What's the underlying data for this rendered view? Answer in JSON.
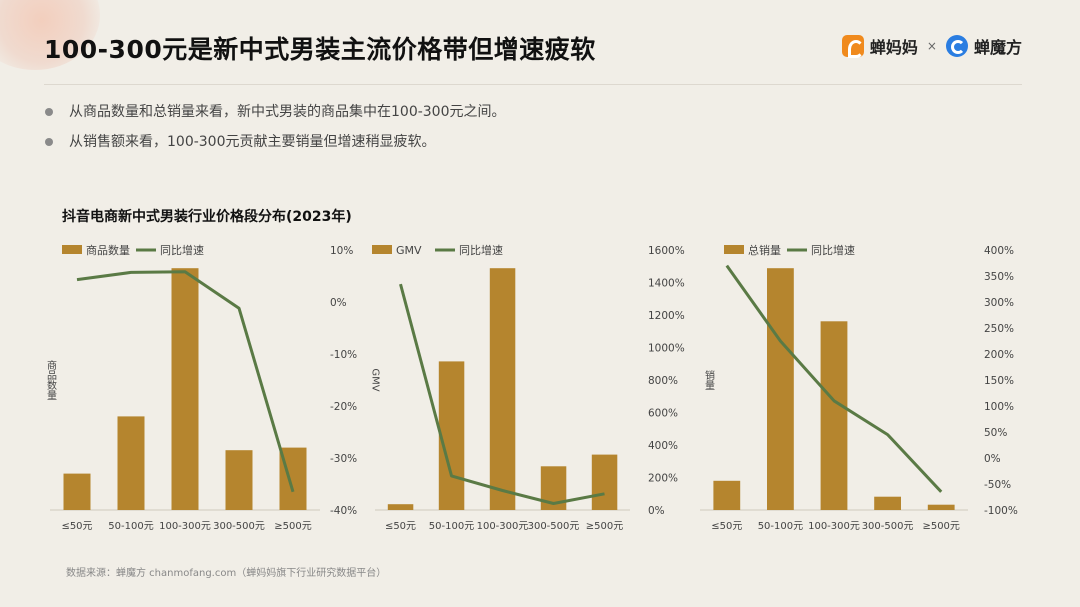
{
  "header": {
    "title": "100-300元是新中式男装主流价格带但增速疲软",
    "brand_left": "蝉妈妈",
    "brand_sep": "×",
    "brand_right": "蝉魔方"
  },
  "bullets": [
    "从商品数量和总销量来看，新中式男装的商品集中在100-300元之间。",
    "从销售额来看，100-300元贡献主要销量但增速稍显疲软。"
  ],
  "section_title": "抖音电商新中式男装行业价格段分布(2023年)",
  "footnote": "数据来源：蝉魔方 chanmofang.com（蝉妈妈旗下行业研究数据平台）",
  "colors": {
    "bar": "#b5852e",
    "line": "#5a7a45",
    "axis_text": "#444"
  },
  "chart_data": [
    {
      "type": "bar",
      "categories": [
        "≤50元",
        "50-100元",
        "100-300元",
        "300-500元",
        "≥500元"
      ],
      "series": [
        {
          "name": "商品数量",
          "kind": "bar",
          "axis": "left",
          "values": [
            14,
            36,
            93,
            23,
            24
          ]
        },
        {
          "name": "同比增速",
          "kind": "line",
          "axis": "right",
          "values": [
            4.3,
            5.7,
            5.8,
            -1.2,
            -36.5
          ]
        }
      ],
      "ylabel": "商品数量",
      "y2_ticks": [
        "10%",
        "0%",
        "-10%",
        "-20%",
        "-30%",
        "-40%"
      ],
      "y2lim": [
        -40,
        10
      ],
      "legend": "top-left"
    },
    {
      "type": "bar",
      "categories": [
        "≤50元",
        "50-100元",
        "100-300元",
        "300-500元",
        "≥500元"
      ],
      "series": [
        {
          "name": "GMV",
          "kind": "bar",
          "axis": "left",
          "values": [
            2,
            51,
            83,
            15,
            19
          ]
        },
        {
          "name": "同比增速",
          "kind": "line",
          "axis": "right",
          "values": [
            1390,
            210,
            120,
            40,
            100
          ]
        }
      ],
      "ylabel": "GMV",
      "y2_ticks": [
        "1600%",
        "1400%",
        "1200%",
        "1000%",
        "800%",
        "600%",
        "400%",
        "200%",
        "0%"
      ],
      "y2lim": [
        0,
        1600
      ],
      "legend": "top-left"
    },
    {
      "type": "bar",
      "categories": [
        "≤50元",
        "50-100元",
        "100-300元",
        "300-500元",
        "≥500元"
      ],
      "series": [
        {
          "name": "总销量",
          "kind": "bar",
          "axis": "left",
          "values": [
            11,
            91,
            71,
            5,
            2
          ]
        },
        {
          "name": "同比增速",
          "kind": "line",
          "axis": "right",
          "values": [
            370,
            225,
            110,
            45,
            -65
          ]
        }
      ],
      "ylabel": "销量",
      "y2_ticks": [
        "400%",
        "350%",
        "300%",
        "250%",
        "200%",
        "150%",
        "100%",
        "50%",
        "0%",
        "-50%",
        "-100%"
      ],
      "y2lim": [
        -100,
        400
      ],
      "legend": "top-left"
    }
  ]
}
